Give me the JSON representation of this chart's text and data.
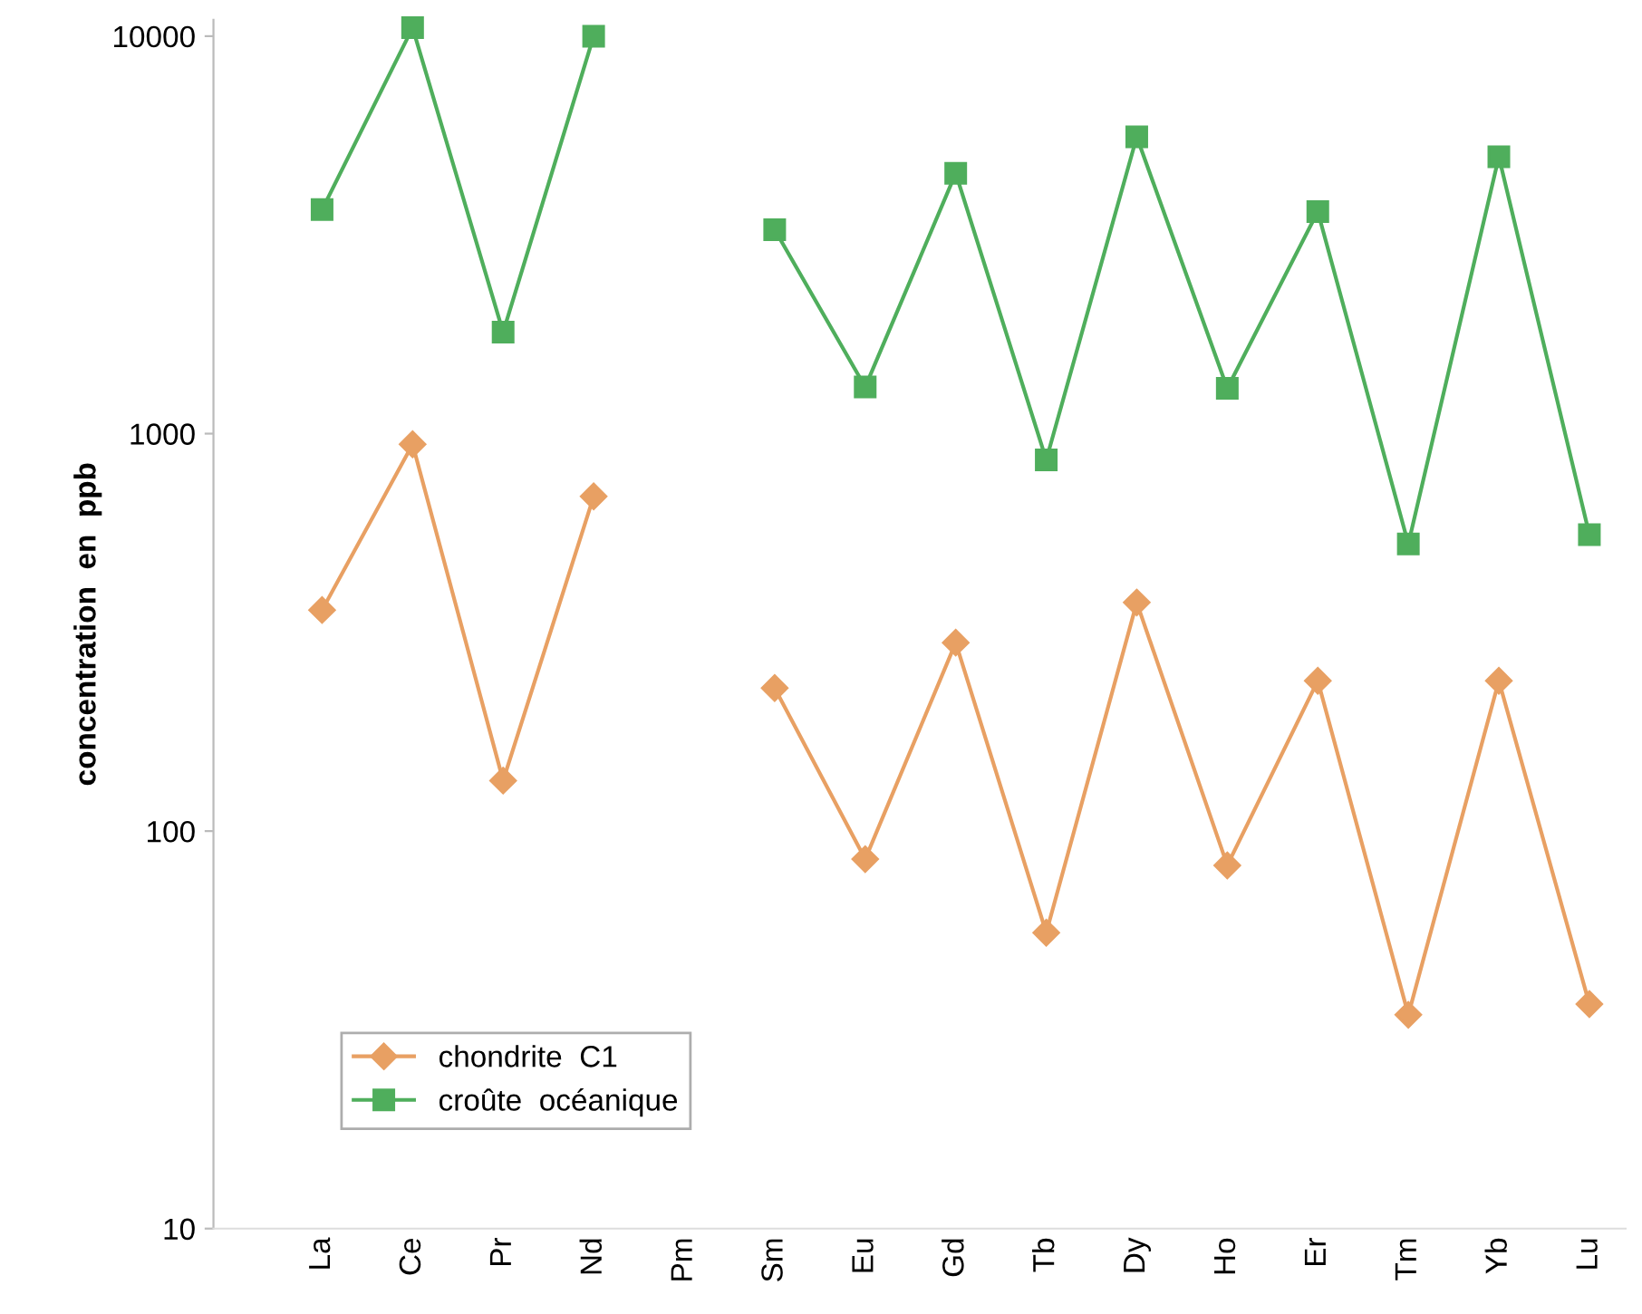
{
  "chart_data": {
    "type": "line",
    "ylabel": "concentration  en  ppb",
    "categories": [
      "La",
      "Ce",
      "Pr",
      "Nd",
      "Pm",
      "Sm",
      "Eu",
      "Gd",
      "Tb",
      "Dy",
      "Ho",
      "Er",
      "Tm",
      "Yb",
      "Lu"
    ],
    "series": [
      {
        "name": "chondrite  C1",
        "color": "#e8a063",
        "marker": "diamond",
        "values": [
          360,
          940,
          134,
          695,
          null,
          229,
          85,
          298,
          55.5,
          376,
          82,
          239,
          34.5,
          239,
          36.7
        ]
      },
      {
        "name": "croûte  océanique",
        "color": "#4fae5c",
        "marker": "square",
        "values": [
          3660,
          10500,
          1800,
          10000,
          null,
          3260,
          1310,
          4520,
          859,
          5580,
          1300,
          3620,
          528,
          4970,
          557
        ]
      }
    ],
    "log": true,
    "ylim": [
      10,
      11000
    ],
    "yticks": [
      10,
      100,
      1000,
      10000
    ],
    "grid": false,
    "legend": "bottom left",
    "line_style": "solid"
  }
}
